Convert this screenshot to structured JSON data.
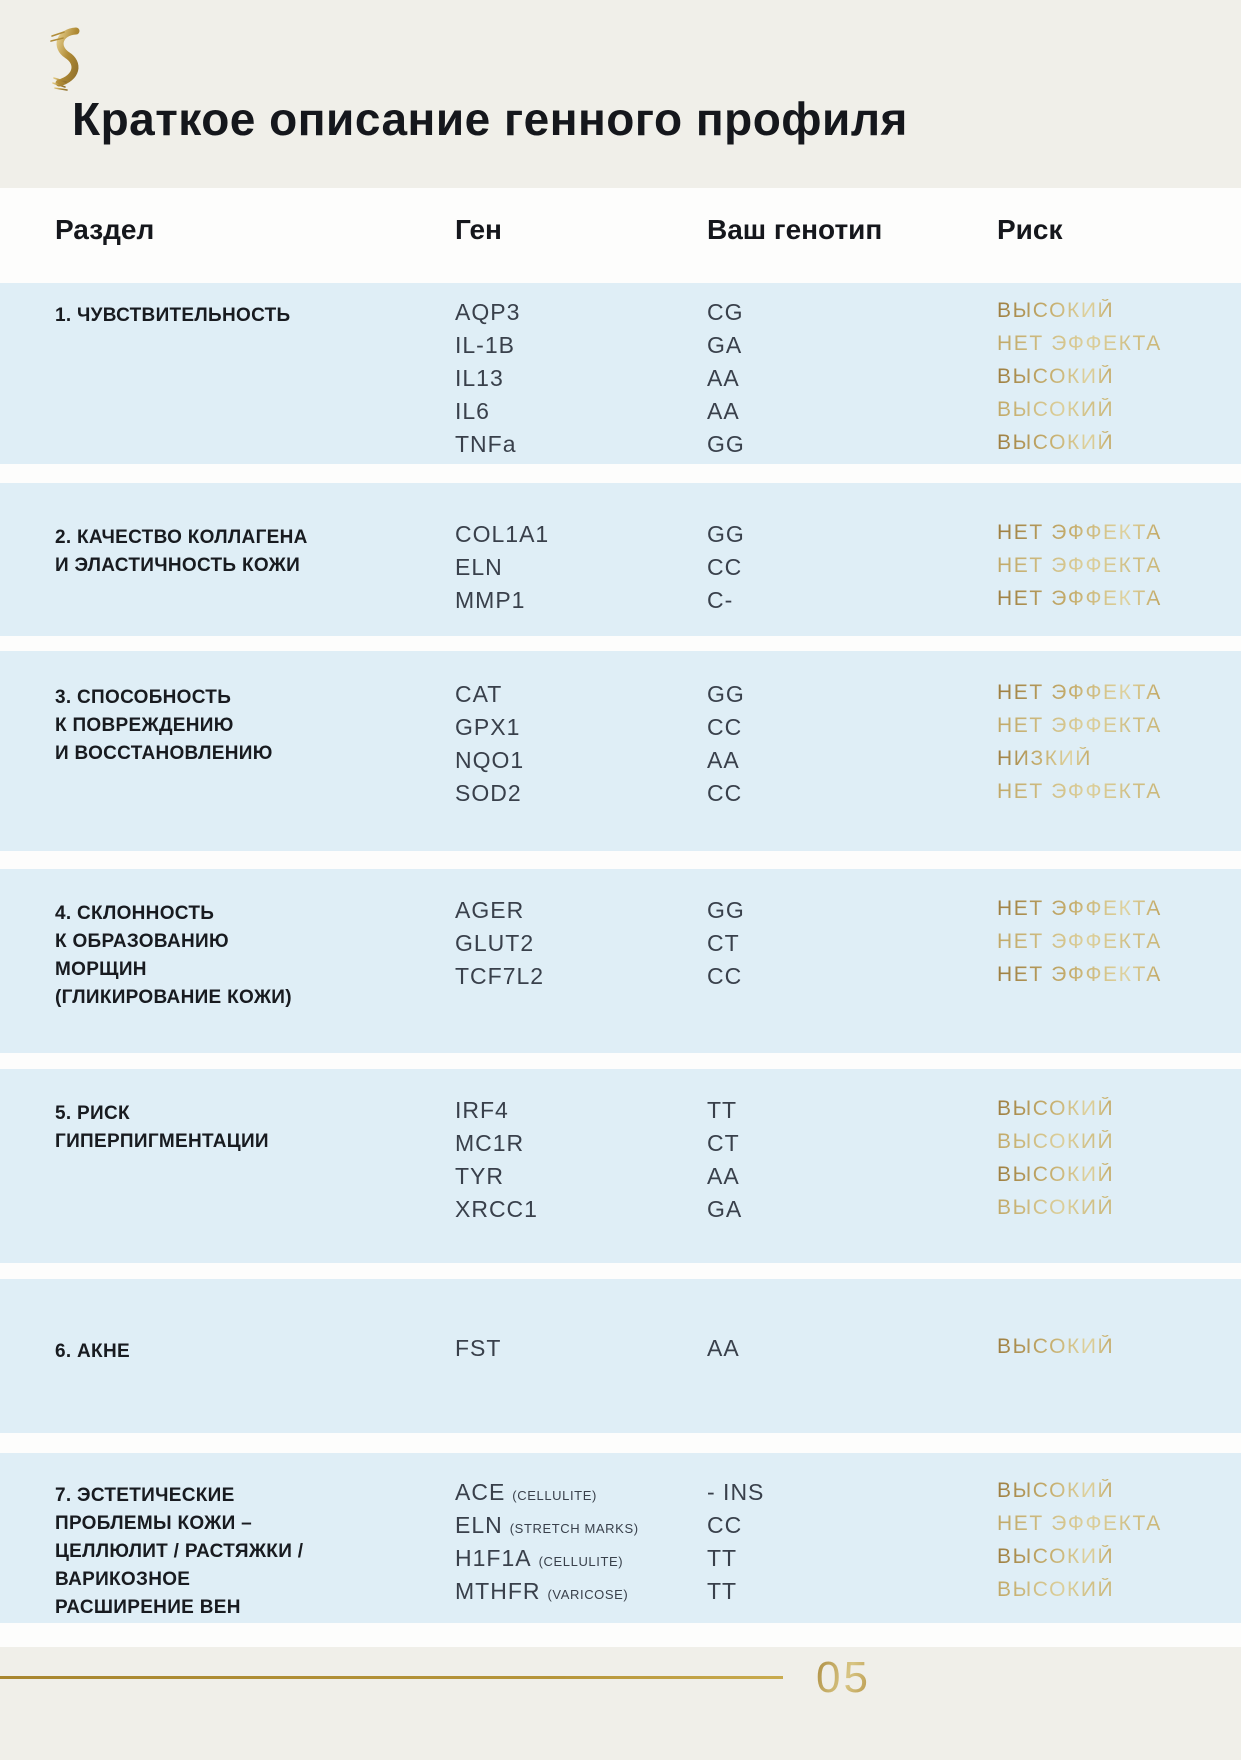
{
  "page": {
    "title": "Краткое описание генного профиля",
    "page_number": "05",
    "logo": "dna-helix-logo"
  },
  "colors": {
    "band_blue": "#dfeef6",
    "beige": "#f0efe9",
    "gold_dark": "#9c7d40",
    "gold_light": "#dfd3a0",
    "text_dark": "#181b20",
    "text_gene": "#39404b"
  },
  "table": {
    "headers": {
      "section": "Раздел",
      "gene": "Ген",
      "genotype": "Ваш генотип",
      "risk": "Риск"
    },
    "sections": [
      {
        "title": "1. ЧУВСТВИТЕЛЬНОСТЬ",
        "rows": [
          {
            "gene": "AQP3",
            "note": "",
            "genotype": "CG",
            "risk": "ВЫСОКИЙ"
          },
          {
            "gene": "IL-1B",
            "note": "",
            "genotype": "GA",
            "risk": "НЕТ ЭФФЕКТА"
          },
          {
            "gene": "IL13",
            "note": "",
            "genotype": "AA",
            "risk": "ВЫСОКИЙ"
          },
          {
            "gene": "IL6",
            "note": "",
            "genotype": "AA",
            "risk": "ВЫСОКИЙ"
          },
          {
            "gene": "TNFa",
            "note": "",
            "genotype": "GG",
            "risk": "ВЫСОКИЙ"
          }
        ]
      },
      {
        "title": "2. КАЧЕСТВО КОЛЛАГЕНА\nИ ЭЛАСТИЧНОСТЬ КОЖИ",
        "rows": [
          {
            "gene": "COL1A1",
            "note": "",
            "genotype": "GG",
            "risk": "НЕТ ЭФФЕКТА"
          },
          {
            "gene": "ELN",
            "note": "",
            "genotype": "CC",
            "risk": "НЕТ ЭФФЕКТА"
          },
          {
            "gene": "MMP1",
            "note": "",
            "genotype": "C-",
            "risk": "НЕТ ЭФФЕКТА"
          }
        ]
      },
      {
        "title": "3. СПОСОБНОСТЬ\nК ПОВРЕЖДЕНИЮ\nИ ВОССТАНОВЛЕНИЮ",
        "rows": [
          {
            "gene": "CAT",
            "note": "",
            "genotype": "GG",
            "risk": "НЕТ ЭФФЕКТА"
          },
          {
            "gene": "GPX1",
            "note": "",
            "genotype": "CC",
            "risk": "НЕТ ЭФФЕКТА"
          },
          {
            "gene": "NQO1",
            "note": "",
            "genotype": "AA",
            "risk": "НИЗКИЙ"
          },
          {
            "gene": "SOD2",
            "note": "",
            "genotype": "CC",
            "risk": "НЕТ ЭФФЕКТА"
          }
        ]
      },
      {
        "title": "4. СКЛОННОСТЬ\nК ОБРАЗОВАНИЮ\nМОРЩИН\n(ГЛИКИРОВАНИЕ КОЖИ)",
        "rows": [
          {
            "gene": "AGER",
            "note": "",
            "genotype": "GG",
            "risk": "НЕТ ЭФФЕКТА"
          },
          {
            "gene": "GLUT2",
            "note": "",
            "genotype": "CT",
            "risk": "НЕТ ЭФФЕКТА"
          },
          {
            "gene": "TCF7L2",
            "note": "",
            "genotype": "CC",
            "risk": "НЕТ ЭФФЕКТА"
          }
        ]
      },
      {
        "title": "5. РИСК\nГИПЕРПИГМЕНТАЦИИ",
        "rows": [
          {
            "gene": "IRF4",
            "note": "",
            "genotype": "TT",
            "risk": "ВЫСОКИЙ"
          },
          {
            "gene": "MC1R",
            "note": "",
            "genotype": "CT",
            "risk": "ВЫСОКИЙ"
          },
          {
            "gene": "TYR",
            "note": "",
            "genotype": "AA",
            "risk": "ВЫСОКИЙ"
          },
          {
            "gene": "XRCC1",
            "note": "",
            "genotype": "GA",
            "risk": "ВЫСОКИЙ"
          }
        ]
      },
      {
        "title": "6. АКНЕ",
        "rows": [
          {
            "gene": "FST",
            "note": "",
            "genotype": "AA",
            "risk": "ВЫСОКИЙ"
          }
        ]
      },
      {
        "title": "7. ЭСТЕТИЧЕСКИЕ\nПРОБЛЕМЫ КОЖИ –\nЦЕЛЛЮЛИТ / РАСТЯЖКИ /\nВАРИКОЗНОЕ\nРАСШИРЕНИЕ ВЕН",
        "rows": [
          {
            "gene": "ACE",
            "note": "(CELLULITE)",
            "genotype": "- INS",
            "risk": "ВЫСОКИЙ"
          },
          {
            "gene": "ELN",
            "note": "(STRETCH MARKS)",
            "genotype": "CC",
            "risk": "НЕТ ЭФФЕКТА"
          },
          {
            "gene": "H1F1A",
            "note": "(CELLULITE)",
            "genotype": "TT",
            "risk": "ВЫСОКИЙ"
          },
          {
            "gene": "MTHFR",
            "note": "(VARICOSE)",
            "genotype": "TT",
            "risk": "ВЫСОКИЙ"
          }
        ]
      }
    ]
  }
}
